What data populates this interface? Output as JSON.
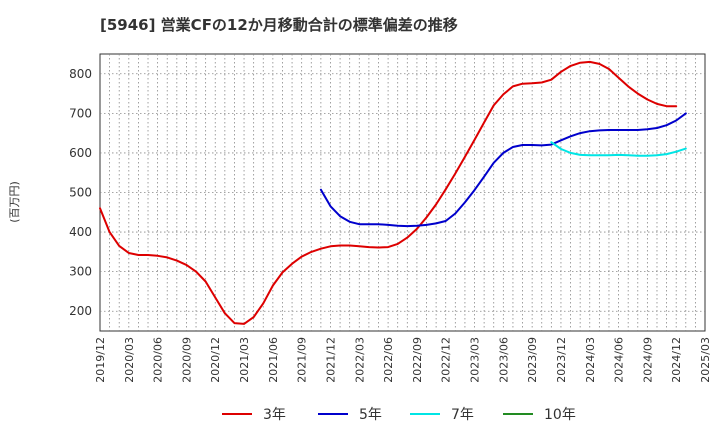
{
  "chart_data": {
    "type": "line",
    "title": "[5946]  営業CFの12か月移動合計の標準偏差の推移",
    "ylabel": "(百万円)",
    "xlabel": "",
    "ylim": [
      150,
      850
    ],
    "yticks": [
      200,
      300,
      400,
      500,
      600,
      700,
      800
    ],
    "x_ticks": [
      "2019/12",
      "2020/03",
      "2020/06",
      "2020/09",
      "2020/12",
      "2021/03",
      "2021/06",
      "2021/09",
      "2021/12",
      "2022/03",
      "2022/06",
      "2022/09",
      "2022/12",
      "2023/03",
      "2023/06",
      "2023/09",
      "2023/12",
      "2024/03",
      "2024/06",
      "2024/09",
      "2024/12",
      "2025/03"
    ],
    "grid": true,
    "legend_position": "bottom",
    "series": [
      {
        "name": "3年",
        "color": "#dd0000",
        "start": "2019/12",
        "values": [
          460,
          400,
          365,
          347,
          342,
          342,
          340,
          336,
          328,
          317,
          300,
          275,
          235,
          195,
          170,
          168,
          185,
          220,
          265,
          298,
          320,
          338,
          350,
          358,
          364,
          366,
          366,
          364,
          362,
          361,
          362,
          370,
          386,
          408,
          437,
          470,
          508,
          548,
          590,
          633,
          677,
          720,
          748,
          768,
          775,
          776,
          778,
          785,
          805,
          820,
          828,
          830,
          825,
          812,
          790,
          768,
          750,
          735,
          724,
          718,
          718
        ]
      },
      {
        "name": "5年",
        "color": "#0000cc",
        "start": "2021/11",
        "values": [
          507,
          465,
          440,
          426,
          420,
          420,
          420,
          418,
          416,
          415,
          416,
          418,
          422,
          428,
          447,
          475,
          506,
          540,
          575,
          600,
          615,
          620,
          620,
          619,
          621,
          632,
          642,
          650,
          655,
          657,
          658,
          658,
          658,
          658,
          660,
          663,
          670,
          682,
          700
        ]
      },
      {
        "name": "7年",
        "color": "#00e5e5",
        "start": "2023/11",
        "values": [
          627,
          610,
          600,
          595,
          594,
          594,
          594,
          595,
          594,
          593,
          593,
          594,
          597,
          603,
          611
        ]
      },
      {
        "name": "10年",
        "color": "#228b22",
        "start": "2019/12",
        "values": []
      }
    ]
  }
}
